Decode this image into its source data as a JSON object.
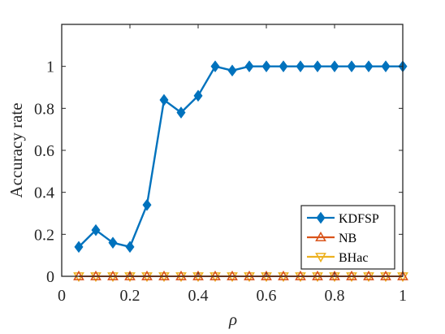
{
  "chart_data": {
    "type": "line",
    "xlabel": "ρ",
    "ylabel": "Accuracy rate",
    "xlim": [
      0,
      1
    ],
    "ylim": [
      0,
      1.2
    ],
    "x_ticks": [
      0,
      0.2,
      0.4,
      0.6,
      0.8,
      1
    ],
    "x_tick_labels": [
      "0",
      "0.2",
      "0.4",
      "0.6",
      "0.8",
      "1"
    ],
    "y_ticks": [
      0,
      0.2,
      0.4,
      0.6,
      0.8,
      1
    ],
    "y_tick_labels": [
      "0",
      "0.2",
      "0.4",
      "0.6",
      "0.8",
      "1"
    ],
    "grid": false,
    "legend_position": "bottom-right",
    "x": [
      0.05,
      0.1,
      0.15,
      0.2,
      0.25,
      0.3,
      0.35,
      0.4,
      0.45,
      0.5,
      0.55,
      0.6,
      0.65,
      0.7,
      0.75,
      0.8,
      0.85,
      0.9,
      0.95,
      1.0
    ],
    "series": [
      {
        "name": "KDFSP",
        "color": "#0072BD",
        "marker": "diamond",
        "values": [
          0.14,
          0.22,
          0.16,
          0.14,
          0.34,
          0.84,
          0.78,
          0.86,
          1.0,
          0.98,
          1.0,
          1.0,
          1.0,
          1.0,
          1.0,
          1.0,
          1.0,
          1.0,
          1.0,
          1.0
        ]
      },
      {
        "name": "NB",
        "color": "#D95319",
        "marker": "triangle-up",
        "values": [
          0,
          0,
          0,
          0,
          0,
          0,
          0,
          0,
          0,
          0,
          0,
          0,
          0,
          0,
          0,
          0,
          0,
          0,
          0,
          0
        ]
      },
      {
        "name": "BHac",
        "color": "#EDB120",
        "marker": "triangle-down",
        "values": [
          0,
          0,
          0,
          0,
          0,
          0,
          0,
          0,
          0,
          0,
          0,
          0,
          0,
          0,
          0,
          0,
          0,
          0,
          0,
          0
        ]
      }
    ]
  }
}
